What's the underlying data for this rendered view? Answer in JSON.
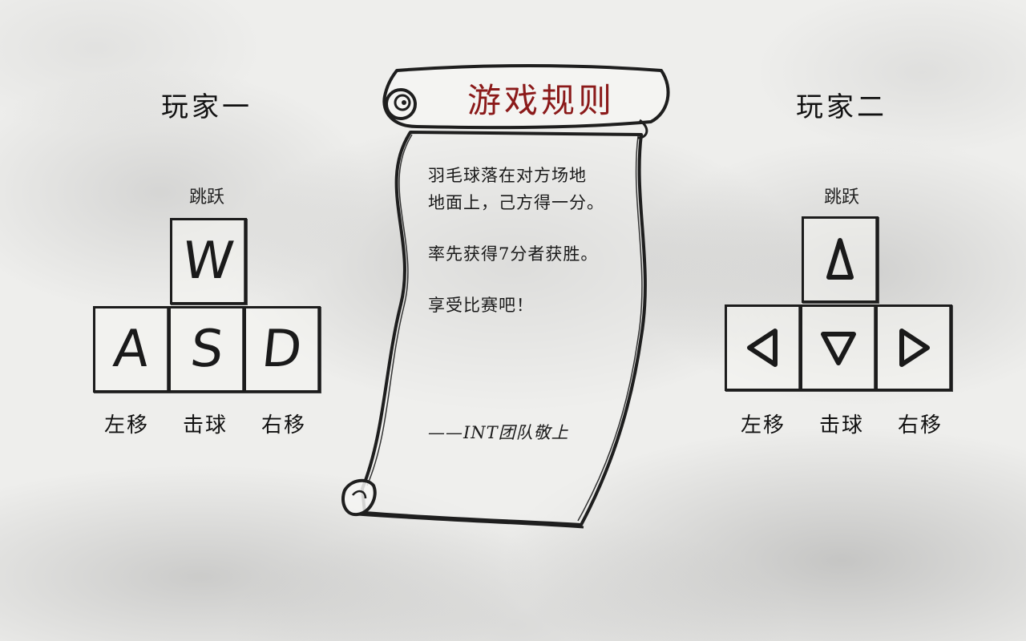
{
  "player_one": {
    "title": "玩家一",
    "jump_label": "跳跃",
    "keys": {
      "up": "W",
      "left": "A",
      "down": "S",
      "right": "D"
    },
    "actions": {
      "left": "左移",
      "hit": "击球",
      "right": "右移"
    }
  },
  "player_two": {
    "title": "玩家二",
    "jump_label": "跳跃",
    "keys": {
      "up": "up-arrow-icon",
      "left": "left-arrow-icon",
      "down": "down-arrow-icon",
      "right": "right-arrow-icon"
    },
    "actions": {
      "left": "左移",
      "hit": "击球",
      "right": "右移"
    }
  },
  "rules": {
    "title": "游戏规则",
    "line1": "羽毛球落在对方场地",
    "line2": "地面上，己方得一分。",
    "line3": "率先获得7分者获胜。",
    "line4": "享受比赛吧！",
    "signature": "——INT团队敬上"
  },
  "colors": {
    "title_red": "#8b1a1a",
    "ink": "#1a1a1a"
  }
}
